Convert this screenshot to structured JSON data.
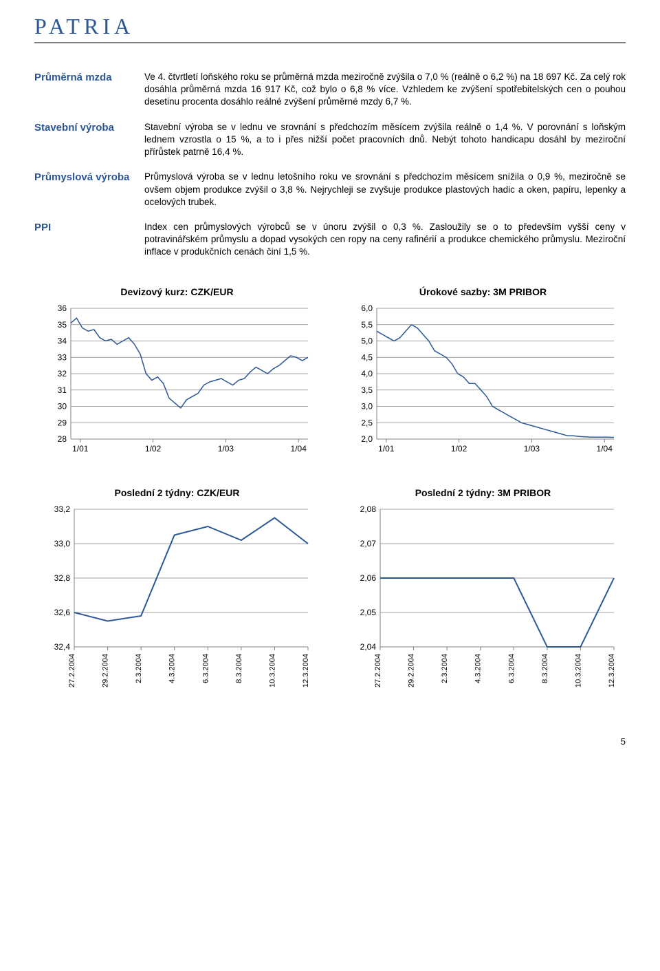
{
  "logo": "PATRIA",
  "sections": [
    {
      "label": "Průměrná mzda",
      "text": "Ve 4. čtvrtletí loňského roku se průměrná mzda meziročně zvýšila o 7,0 % (reálně o 6,2 %) na 18 697 Kč. Za celý rok dosáhla průměrná mzda 16 917 Kč, což bylo o 6,8 % více. Vzhledem ke zvýšení spotřebitelských cen o pouhou desetinu procenta dosáhlo reálné zvýšení průměrné mzdy 6,7 %."
    },
    {
      "label": "Stavební výroba",
      "text": "Stavební výroba se v lednu ve srovnání s předchozím měsícem zvýšila reálně o 1,4 %. V porovnání s loňským lednem vzrostla o 15 %, a to i přes nižší počet pracovních dnů. Nebýt tohoto handicapu dosáhl by meziroční přírůstek patrně 16,4 %."
    },
    {
      "label": "Průmyslová výroba",
      "text": "Průmyslová výroba se v lednu letošního roku ve srovnání s předchozím měsícem snížila o 0,9 %, meziročně se ovšem objem produkce zvýšil o 3,8 %. Nejrychleji se zvyšuje produkce plastových hadic a oken, papíru, lepenky a ocelových trubek."
    },
    {
      "label": "PPI",
      "text": "Index cen průmyslových výrobců se v únoru zvýšil o 0,3 %. Zasloužily se o to především vyšší ceny v potravinářském průmyslu a dopad vysokých cen ropy na ceny rafinérií a produkce chemického průmyslu. Meziroční inflace v produkčních cenách činí 1,5 %."
    }
  ],
  "chart1": {
    "type": "line",
    "title": "Devizový kurz: CZK/EUR",
    "line_color": "#2b5797",
    "ymin": 28,
    "ymax": 36,
    "ystep": 1,
    "xticks": [
      "1/01",
      "1/02",
      "1/03",
      "1/04"
    ],
    "grid_color": "#808080",
    "values": [
      35.1,
      35.4,
      34.8,
      34.6,
      34.7,
      34.2,
      34.0,
      34.1,
      33.8,
      34.0,
      34.2,
      33.8,
      33.2,
      32.0,
      31.6,
      31.8,
      31.4,
      30.5,
      30.2,
      29.9,
      30.4,
      30.6,
      30.8,
      31.3,
      31.5,
      31.6,
      31.7,
      31.5,
      31.3,
      31.6,
      31.7,
      32.1,
      32.4,
      32.2,
      32.0,
      32.3,
      32.5,
      32.8,
      33.1,
      33.0,
      32.8,
      33.0
    ]
  },
  "chart2": {
    "type": "line",
    "title": "Úrokové sazby: 3M PRIBOR",
    "line_color": "#2b5797",
    "ymin": 2.0,
    "ymax": 6.0,
    "ystep": 0.5,
    "xticks": [
      "1/01",
      "1/02",
      "1/03",
      "1/04"
    ],
    "grid_color": "#808080",
    "values": [
      5.3,
      5.2,
      5.1,
      5.0,
      5.1,
      5.3,
      5.5,
      5.4,
      5.2,
      5.0,
      4.7,
      4.6,
      4.5,
      4.3,
      4.0,
      3.9,
      3.7,
      3.7,
      3.5,
      3.3,
      3.0,
      2.9,
      2.8,
      2.7,
      2.6,
      2.5,
      2.45,
      2.4,
      2.35,
      2.3,
      2.25,
      2.2,
      2.15,
      2.1,
      2.1,
      2.08,
      2.07,
      2.06,
      2.06,
      2.06,
      2.06,
      2.05
    ]
  },
  "chart3": {
    "type": "line",
    "title": "Poslední 2 týdny: CZK/EUR",
    "line_color": "#2b5797",
    "ymin": 32.4,
    "ymax": 33.2,
    "ystep": 0.2,
    "xticks": [
      "27.2.2004",
      "29.2.2004",
      "2.3.2004",
      "4.3.2004",
      "6.3.2004",
      "8.3.2004",
      "10.3.2004",
      "12.3.2004"
    ],
    "grid_color": "#808080",
    "values": [
      32.6,
      32.55,
      32.58,
      33.05,
      33.1,
      33.02,
      33.15,
      33.0
    ]
  },
  "chart4": {
    "type": "line",
    "title": "Poslední 2 týdny: 3M PRIBOR",
    "line_color": "#2b5797",
    "ymin": 2.04,
    "ymax": 2.08,
    "ystep": 0.01,
    "xticks": [
      "27.2.2004",
      "29.2.2004",
      "2.3.2004",
      "4.3.2004",
      "6.3.2004",
      "8.3.2004",
      "10.3.2004",
      "12.3.2004"
    ],
    "grid_color": "#808080",
    "values": [
      2.06,
      2.06,
      2.06,
      2.06,
      2.06,
      2.04,
      2.04,
      2.06
    ]
  },
  "page_number": "5"
}
